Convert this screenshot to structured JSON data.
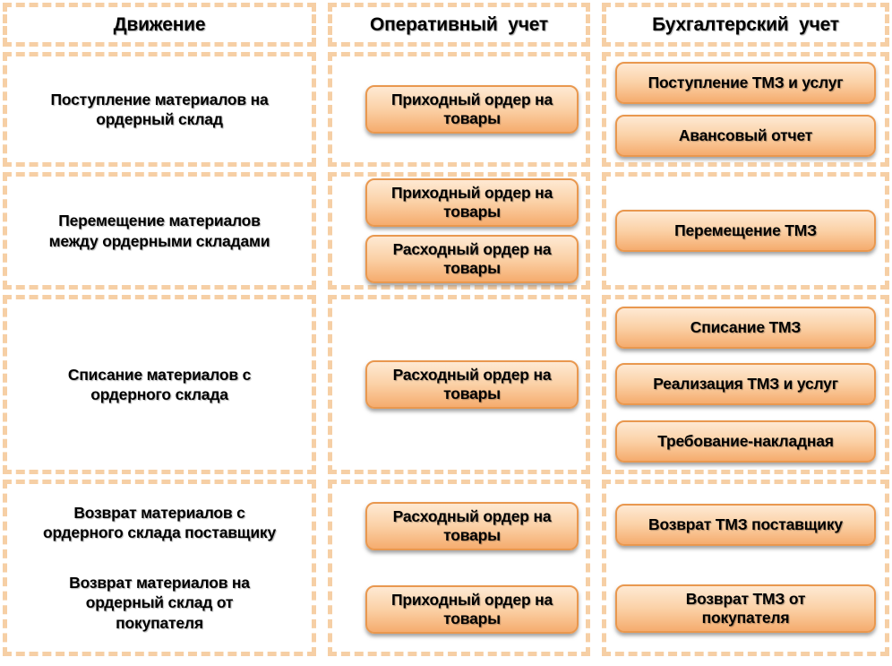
{
  "diagram": {
    "headers": {
      "movement": "Движение",
      "operational": "Оперативный учет",
      "accounting": "Бухгалтерский учет"
    },
    "rows": [
      {
        "movement": [
          "Поступление материалов на\nордерный склад"
        ],
        "operational": [
          "Приходный ордер на\nтовары"
        ],
        "accounting": [
          "Поступление ТМЗ и услуг",
          "Авансовый отчет"
        ]
      },
      {
        "movement": [
          "Перемещение материалов\nмежду ордерными складами"
        ],
        "operational": [
          "Приходный ордер на\nтовары",
          "Расходный ордер на\nтовары"
        ],
        "accounting": [
          "Перемещение ТМЗ"
        ]
      },
      {
        "movement": [
          "Списание материалов с\nордерного склада"
        ],
        "operational": [
          "Расходный ордер на\nтовары"
        ],
        "accounting": [
          "Списание ТМЗ",
          "Реализация ТМЗ и услуг",
          "Требование-накладная"
        ]
      },
      {
        "movement": [
          "Возврат материалов с\nордерного склада поставщику",
          "Возврат материалов на\nордерный склад от\nпокупателя"
        ],
        "operational": [
          "Расходный ордер на\nтовары",
          "Приходный ордер на\nтовары"
        ],
        "accounting": [
          "Возврат ТМЗ поставщику",
          "Возврат ТМЗ от\nпокупателя"
        ]
      }
    ],
    "colors": {
      "dash_border": "#f6cfa5",
      "button_border": "#e9984f",
      "button_gradient_top": "#fee9d3",
      "button_gradient_bottom": "#f5ac6e",
      "text": "#000000"
    }
  }
}
